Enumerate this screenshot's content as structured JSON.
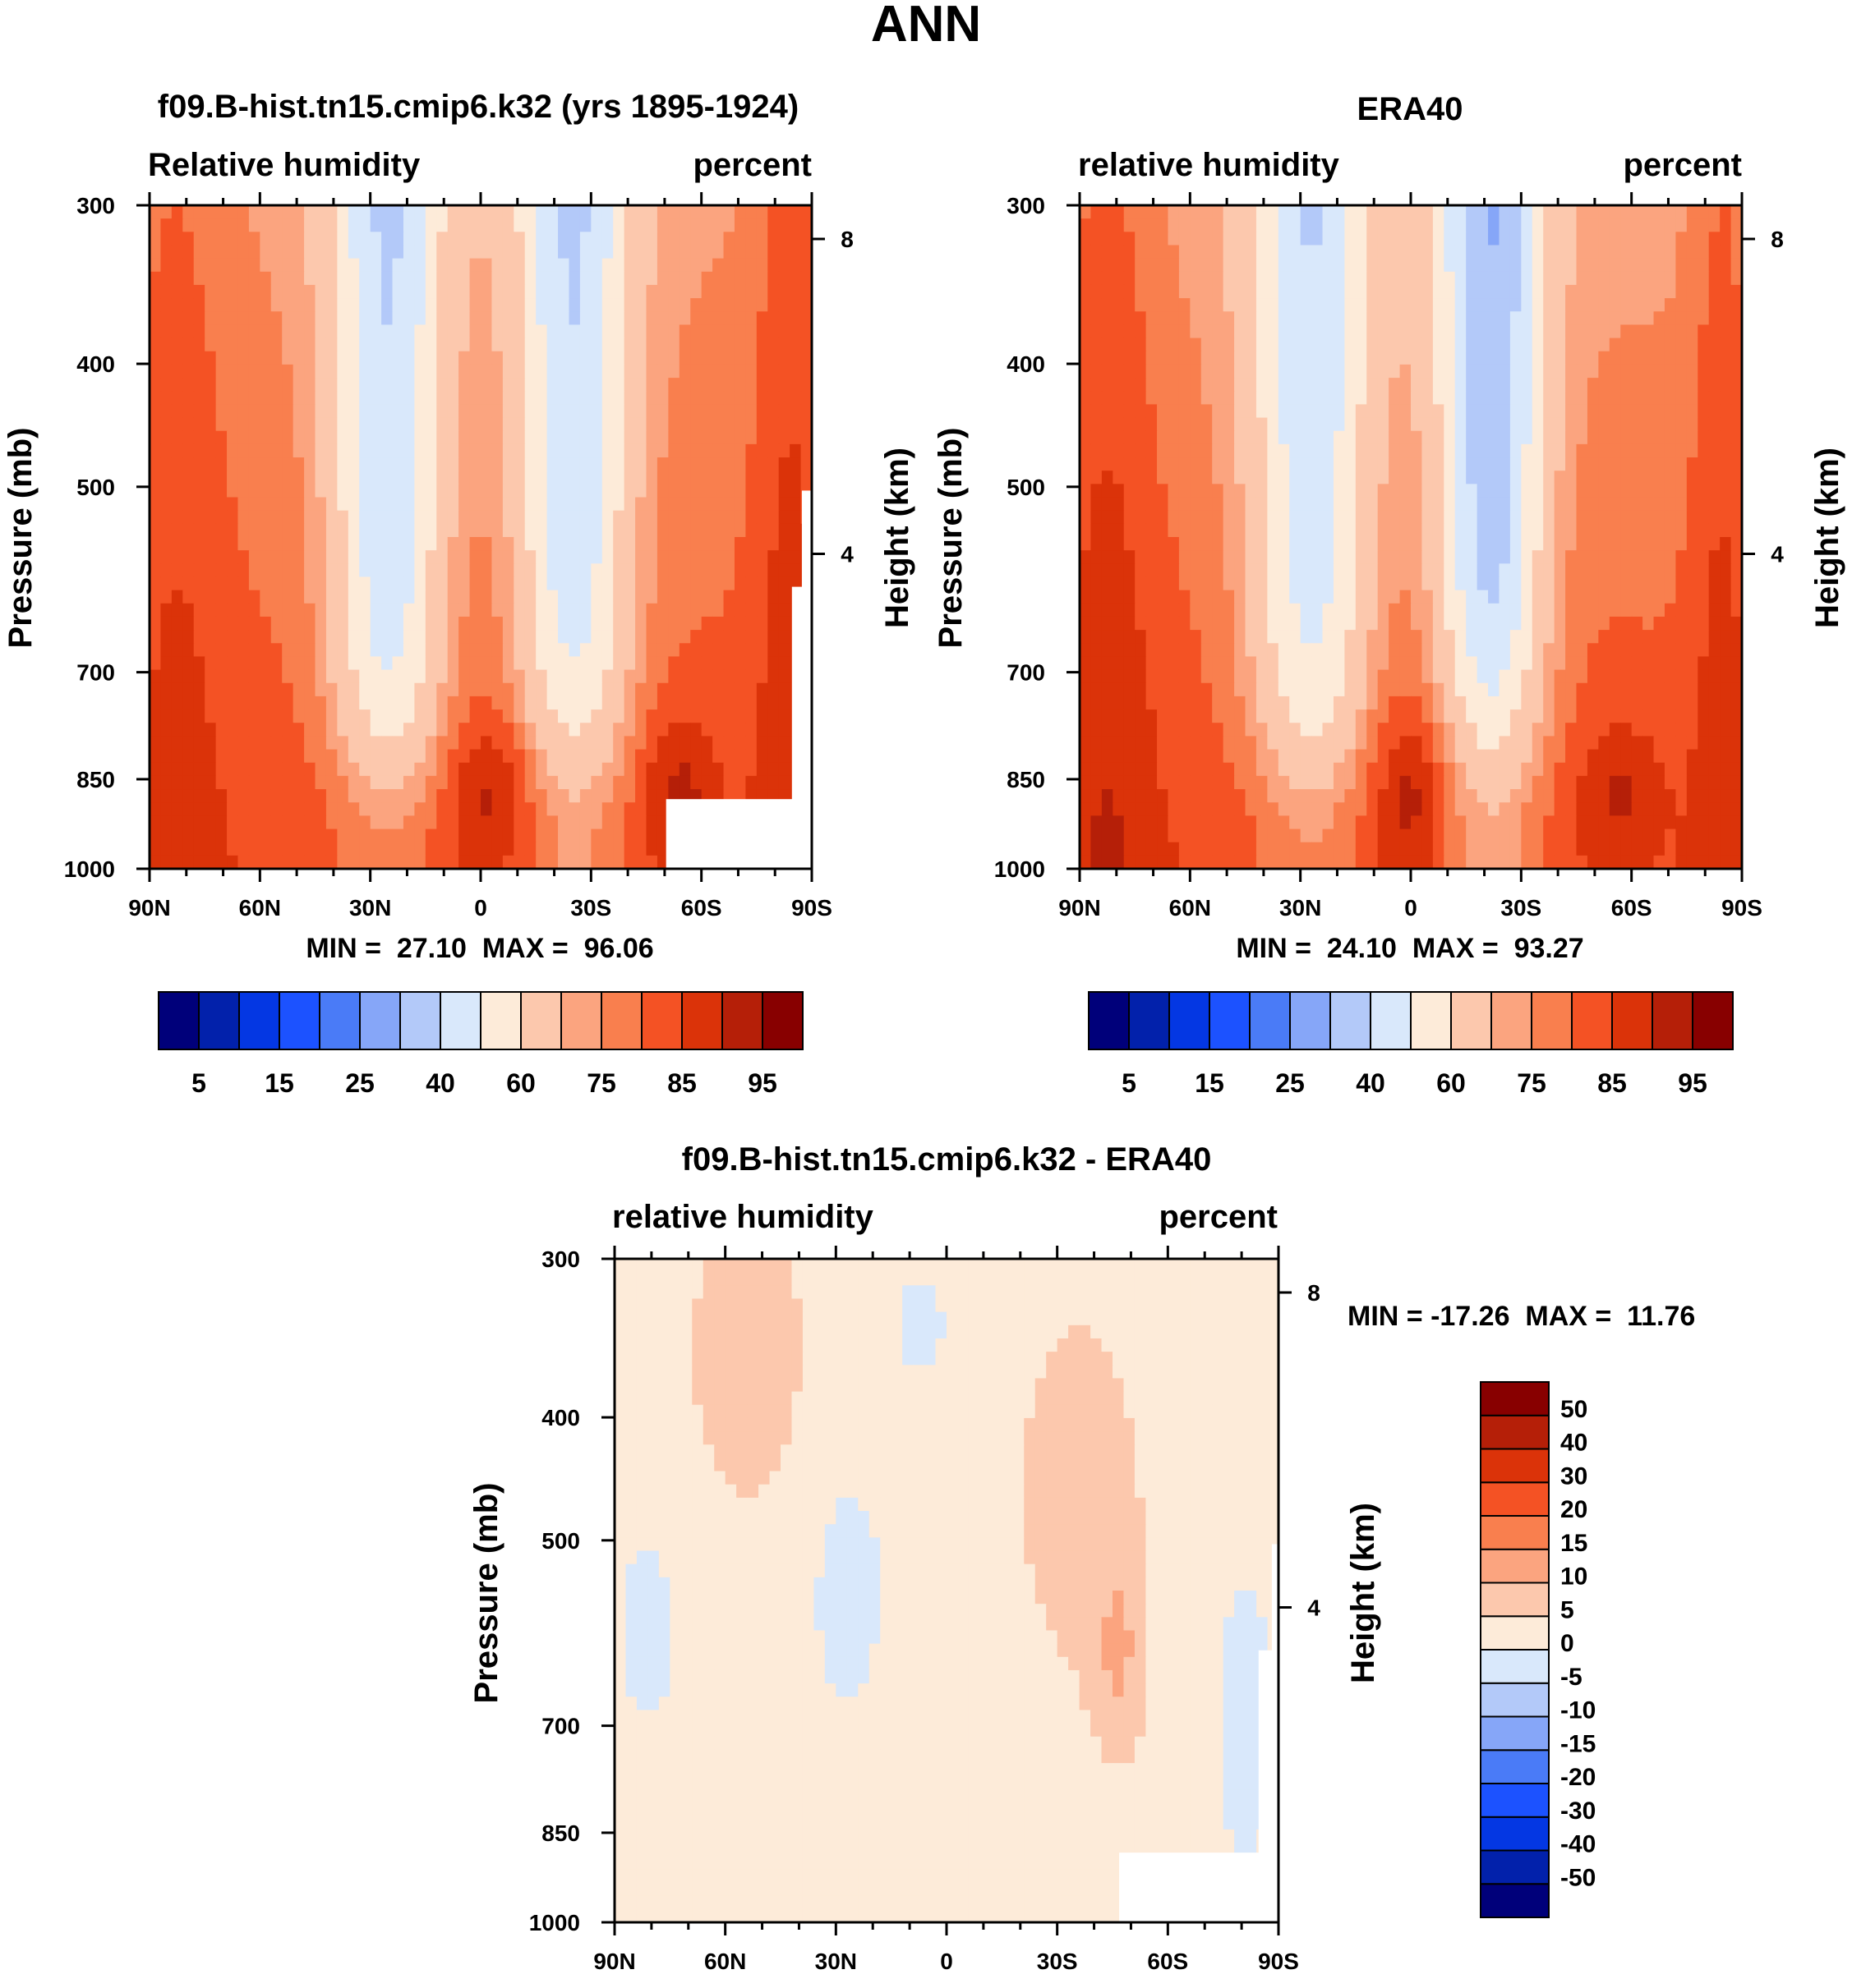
{
  "page_title": "ANN",
  "chart_data": [
    {
      "type": "contour",
      "title": "f09.B-hist.tn15.cmip6.k32 (yrs 1895-1924)",
      "variable": "Relative humidity",
      "units": "percent",
      "xlabel": "",
      "ylabel": "Pressure (mb)",
      "y2label": "Height (km)",
      "x_ticks": [
        "90N",
        "60N",
        "30N",
        "0",
        "30S",
        "60S",
        "90S"
      ],
      "x_values": [
        90,
        60,
        30,
        0,
        -30,
        -60,
        -90
      ],
      "y_ticks": [
        300,
        400,
        500,
        700,
        850,
        1000
      ],
      "y2_ticks": [
        8,
        4
      ],
      "xlim": [
        90,
        -90
      ],
      "ylim": [
        1000,
        300
      ],
      "stats": "MIN =  27.10  MAX =  96.06",
      "contour_levels": [
        5,
        10,
        15,
        20,
        25,
        30,
        40,
        50,
        60,
        70,
        75,
        80,
        85,
        90,
        95
      ],
      "colorbar_labels": [
        "5",
        "15",
        "25",
        "40",
        "60",
        "75",
        "85",
        "95"
      ],
      "colorbar_orientation": "horizontal",
      "min": 27.1,
      "max": 96.06,
      "missing_region": "near-surface south of 60S"
    },
    {
      "type": "contour",
      "title": "ERA40",
      "variable": "relative humidity",
      "units": "percent",
      "ylabel": "Pressure (mb)",
      "y2label": "Height (km)",
      "x_ticks": [
        "90N",
        "60N",
        "30N",
        "0",
        "30S",
        "60S",
        "90S"
      ],
      "x_values": [
        90,
        60,
        30,
        0,
        -30,
        -60,
        -90
      ],
      "y_ticks": [
        300,
        400,
        500,
        700,
        850,
        1000
      ],
      "y2_ticks": [
        8,
        4
      ],
      "xlim": [
        90,
        -90
      ],
      "ylim": [
        1000,
        300
      ],
      "stats": "MIN =  24.10  MAX =  93.27",
      "contour_levels": [
        5,
        10,
        15,
        20,
        25,
        30,
        40,
        50,
        60,
        70,
        75,
        80,
        85,
        90,
        95
      ],
      "colorbar_labels": [
        "5",
        "15",
        "25",
        "40",
        "60",
        "75",
        "85",
        "95"
      ],
      "colorbar_orientation": "horizontal",
      "min": 24.1,
      "max": 93.27
    },
    {
      "type": "contour",
      "title": "f09.B-hist.tn15.cmip6.k32 - ERA40",
      "variable": "relative humidity",
      "units": "percent",
      "ylabel": "Pressure (mb)",
      "y2label": "Height (km)",
      "x_ticks": [
        "90N",
        "60N",
        "30N",
        "0",
        "30S",
        "60S",
        "90S"
      ],
      "x_values": [
        90,
        60,
        30,
        0,
        -30,
        -60,
        -90
      ],
      "y_ticks": [
        300,
        400,
        500,
        700,
        850,
        1000
      ],
      "y2_ticks": [
        8,
        4
      ],
      "xlim": [
        90,
        -90
      ],
      "ylim": [
        1000,
        300
      ],
      "stats": "MIN = -17.26  MAX =  11.76",
      "contour_levels": [
        -50,
        -40,
        -30,
        -20,
        -15,
        -10,
        -5,
        0,
        5,
        10,
        15,
        20,
        30,
        40,
        50
      ],
      "colorbar_labels": [
        "50",
        "40",
        "30",
        "20",
        "15",
        "10",
        "5",
        "0",
        "-5",
        "-10",
        "-15",
        "-20",
        "-30",
        "-40",
        "-50"
      ],
      "colorbar_orientation": "vertical",
      "min": -17.26,
      "max": 11.76
    }
  ],
  "colors": {
    "palette": [
      "#00007a",
      "#0221ab",
      "#0437e3",
      "#1c52ff",
      "#4a7bf7",
      "#86a6f8",
      "#b3c9f9",
      "#d9e8fb",
      "#fdebd9",
      "#fcc8ad",
      "#fba47f",
      "#f97f4e",
      "#f45224",
      "#db3309",
      "#b51f08",
      "#880000"
    ],
    "missing": "#ffffff",
    "axis": "#000000"
  }
}
